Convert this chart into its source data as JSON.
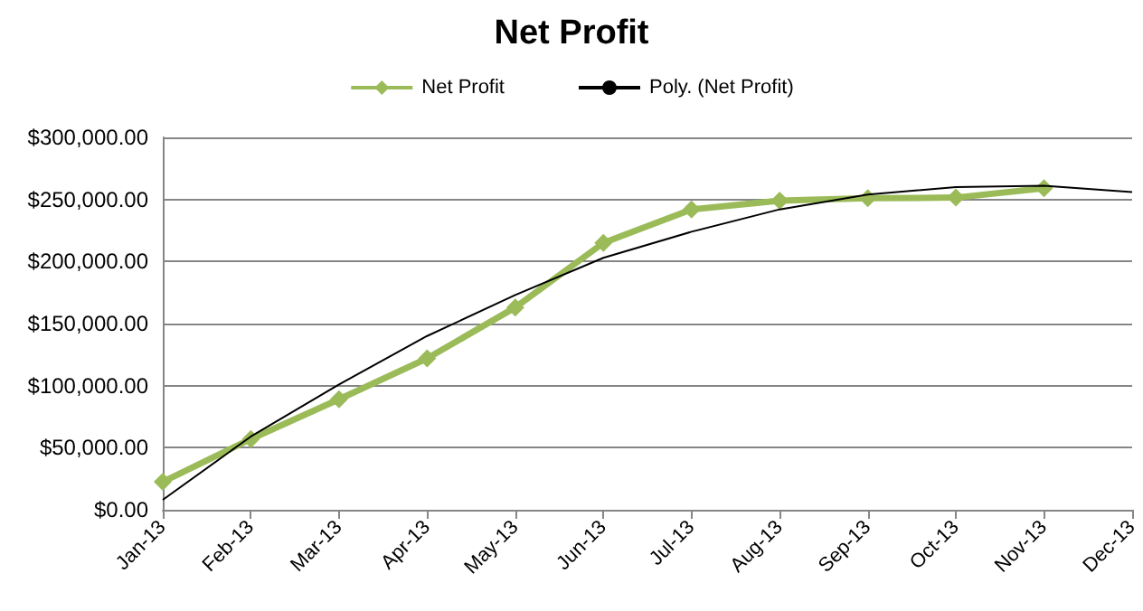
{
  "chart_data": {
    "type": "line",
    "title": "Net Profit",
    "categories": [
      "Jan-13",
      "Feb-13",
      "Mar-13",
      "Apr-13",
      "May-13",
      "Jun-13",
      "Jul-13",
      "Aug-13",
      "Sep-13",
      "Oct-13",
      "Nov-13",
      "Dec-13"
    ],
    "series": [
      {
        "name": "Net Profit",
        "color": "#9bbb59",
        "marker": "diamond",
        "values": [
          22500,
          57000,
          89000,
          122000,
          163000,
          215000,
          242000,
          249000,
          251000,
          251500,
          259000,
          null
        ]
      },
      {
        "name": "Poly. (Net Profit)",
        "color": "#000000",
        "marker": "none",
        "values": [
          8000,
          59000,
          101000,
          140000,
          173000,
          203000,
          224000,
          242000,
          254000,
          260000,
          261000,
          256000
        ]
      }
    ],
    "ylim": [
      0,
      300000
    ],
    "yticks": [
      {
        "value": 0,
        "label": "$0.00"
      },
      {
        "value": 50000,
        "label": "$50,000.00"
      },
      {
        "value": 100000,
        "label": "$100,000.00"
      },
      {
        "value": 150000,
        "label": "$150,000.00"
      },
      {
        "value": 200000,
        "label": "$200,000.00"
      },
      {
        "value": 250000,
        "label": "$250,000.00"
      },
      {
        "value": 300000,
        "label": "$300,000.00"
      }
    ],
    "grid": "y",
    "legend": "top"
  }
}
